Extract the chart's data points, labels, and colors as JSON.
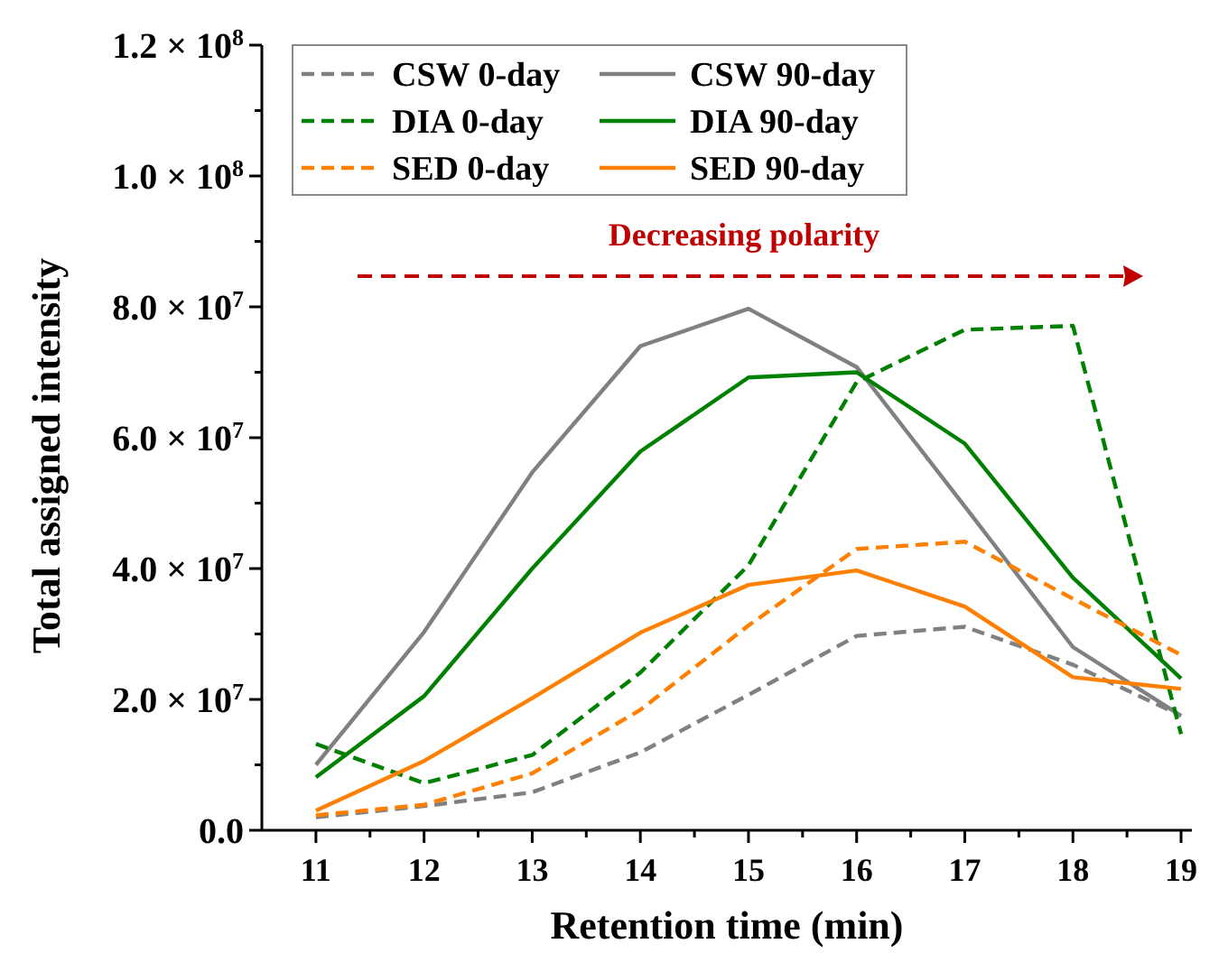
{
  "chart_data": {
    "type": "line",
    "xlabel": "Retention time (min)",
    "ylabel": "Total assigned intensity",
    "x": [
      11,
      12,
      13,
      14,
      15,
      16,
      17,
      18,
      19
    ],
    "series": [
      {
        "name": "CSW 0-day",
        "color": "#808080",
        "line_style": "dashed",
        "values": [
          2000000,
          3700000,
          5800000,
          11900000,
          20700000,
          29700000,
          31100000,
          25300000,
          17500000
        ]
      },
      {
        "name": "CSW 90-day",
        "color": "#808080",
        "line_style": "solid",
        "values": [
          10000000,
          30300000,
          54700000,
          74000000,
          79700000,
          70800000,
          49500000,
          28000000,
          17500000
        ]
      },
      {
        "name": "DIA 0-day",
        "color": "#008000",
        "line_style": "dashed",
        "values": [
          13200000,
          7200000,
          11500000,
          24100000,
          40500000,
          68500000,
          76500000,
          77100000,
          14700000
        ]
      },
      {
        "name": "DIA 90-day",
        "color": "#008000",
        "line_style": "solid",
        "values": [
          8100000,
          20500000,
          40000000,
          57900000,
          69200000,
          70000000,
          59100000,
          38600000,
          23200000
        ]
      },
      {
        "name": "SED 0-day",
        "color": "#ff8000",
        "line_style": "dashed",
        "values": [
          2300000,
          3900000,
          8700000,
          18400000,
          31300000,
          43000000,
          44100000,
          35400000,
          26800000
        ]
      },
      {
        "name": "SED 90-day",
        "color": "#ff8000",
        "line_style": "solid",
        "values": [
          3000000,
          10600000,
          20200000,
          30200000,
          37500000,
          39700000,
          34200000,
          23400000,
          21600000
        ]
      }
    ],
    "xlim": [
      10.5,
      19.1
    ],
    "xticks": [
      11,
      {
        "value": 11.5,
        "label": null
      },
      12,
      {
        "value": 12.5,
        "label": null
      },
      13,
      {
        "value": 13.5,
        "label": null
      },
      14,
      {
        "value": 14.5,
        "label": null
      },
      15,
      {
        "value": 15.5,
        "label": null
      },
      16,
      {
        "value": 16.5,
        "label": null
      },
      17,
      {
        "value": 17.5,
        "label": null
      },
      18,
      {
        "value": 18.5,
        "label": null
      },
      19
    ],
    "ylim": [
      0,
      120000000
    ],
    "yticks": [
      {
        "value": 0,
        "label": "0.0"
      },
      {
        "value": 10000000,
        "label": null
      },
      {
        "value": 20000000,
        "label": "2.0 × 10$^{7}$"
      },
      {
        "value": 30000000,
        "label": null
      },
      {
        "value": 40000000,
        "label": "4.0 × 10$^{7}$"
      },
      {
        "value": 50000000,
        "label": null
      },
      {
        "value": 60000000,
        "label": "6.0 × 10$^{7}$"
      },
      {
        "value": 70000000,
        "label": null
      },
      {
        "value": 80000000,
        "label": "8.0 × 10$^{7}$"
      },
      {
        "value": 90000000,
        "label": null
      },
      {
        "value": 100000000,
        "label": "1.0 × 10$^{8}$"
      },
      {
        "value": 110000000,
        "label": null
      },
      {
        "value": 120000000,
        "label": "1.2 × 10$^{8}$"
      }
    ],
    "annotations": [
      "Decreasing polarity"
    ],
    "legend": "top left",
    "grid": false,
    "marker": "none"
  }
}
